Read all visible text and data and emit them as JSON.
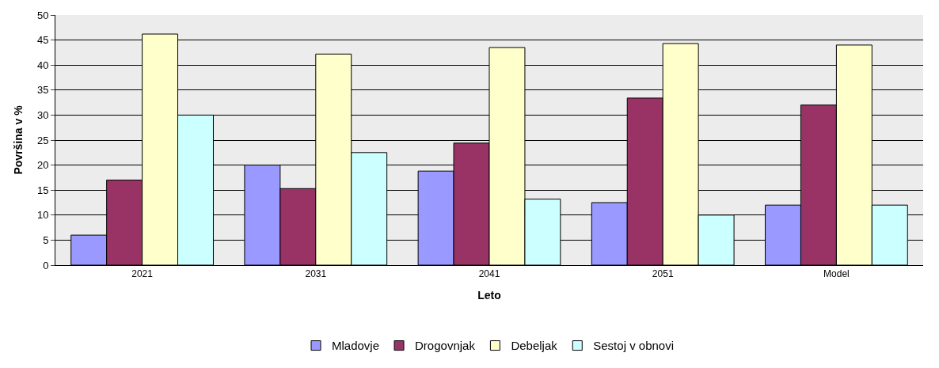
{
  "chart_data": {
    "type": "bar",
    "xlabel": "Leto",
    "ylabel": "Površina v %",
    "categories": [
      "2021",
      "2031",
      "2041",
      "2051",
      "Model"
    ],
    "series": [
      {
        "name": "Mladovje",
        "color": "#9999ff",
        "values": [
          6,
          20,
          18.8,
          12.5,
          12
        ]
      },
      {
        "name": "Drogovnjak",
        "color": "#993366",
        "values": [
          17,
          15.3,
          24.4,
          33.4,
          32
        ]
      },
      {
        "name": "Debeljak",
        "color": "#ffffcc",
        "values": [
          46.2,
          42.2,
          43.5,
          44.3,
          44
        ]
      },
      {
        "name": "Sestoj v obnovi",
        "color": "#ccffff",
        "values": [
          30,
          22.5,
          13.2,
          10,
          12
        ]
      }
    ],
    "ylim": [
      0,
      50
    ],
    "yticks": [
      0,
      5,
      10,
      15,
      20,
      25,
      30,
      35,
      40,
      45,
      50
    ],
    "grid": "y",
    "legend": "bottom"
  }
}
